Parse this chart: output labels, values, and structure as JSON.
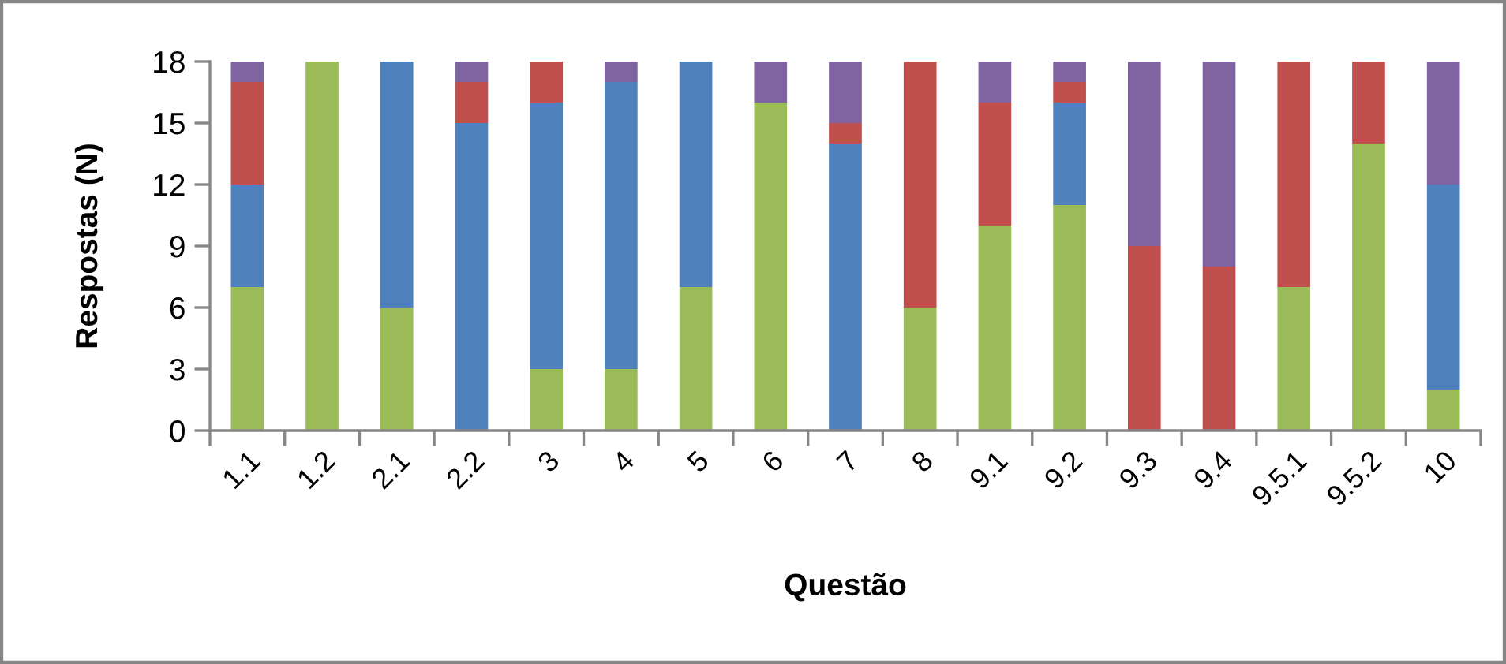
{
  "chart_data": {
    "type": "bar",
    "stacked": true,
    "xlabel": "Questão",
    "ylabel": "Respostas (N)",
    "categories": [
      "1.1",
      "1.2",
      "2.1",
      "2.2",
      "3",
      "4",
      "5",
      "6",
      "7",
      "8",
      "9.1",
      "9.2",
      "9.3",
      "9.4",
      "9.5.1",
      "9.5.2",
      "10"
    ],
    "series": [
      {
        "color": "#9bbb59",
        "values": [
          7,
          18,
          6,
          0,
          3,
          3,
          7,
          16,
          0,
          6,
          10,
          11,
          0,
          0,
          7,
          14,
          2
        ]
      },
      {
        "color": "#4f81bd",
        "values": [
          5,
          0,
          12,
          15,
          13,
          14,
          11,
          0,
          14,
          0,
          0,
          5,
          0,
          0,
          0,
          0,
          10
        ]
      },
      {
        "color": "#c0504d",
        "values": [
          5,
          0,
          0,
          2,
          2,
          0,
          0,
          0,
          1,
          12,
          6,
          1,
          9,
          8,
          11,
          4,
          0
        ]
      },
      {
        "color": "#8064a2",
        "values": [
          1,
          0,
          0,
          1,
          0,
          1,
          0,
          2,
          3,
          0,
          2,
          1,
          9,
          10,
          0,
          0,
          6
        ]
      }
    ],
    "ylim": [
      0,
      18
    ],
    "yticks": [
      0,
      3,
      6,
      9,
      12,
      15,
      18
    ],
    "grid": false
  }
}
